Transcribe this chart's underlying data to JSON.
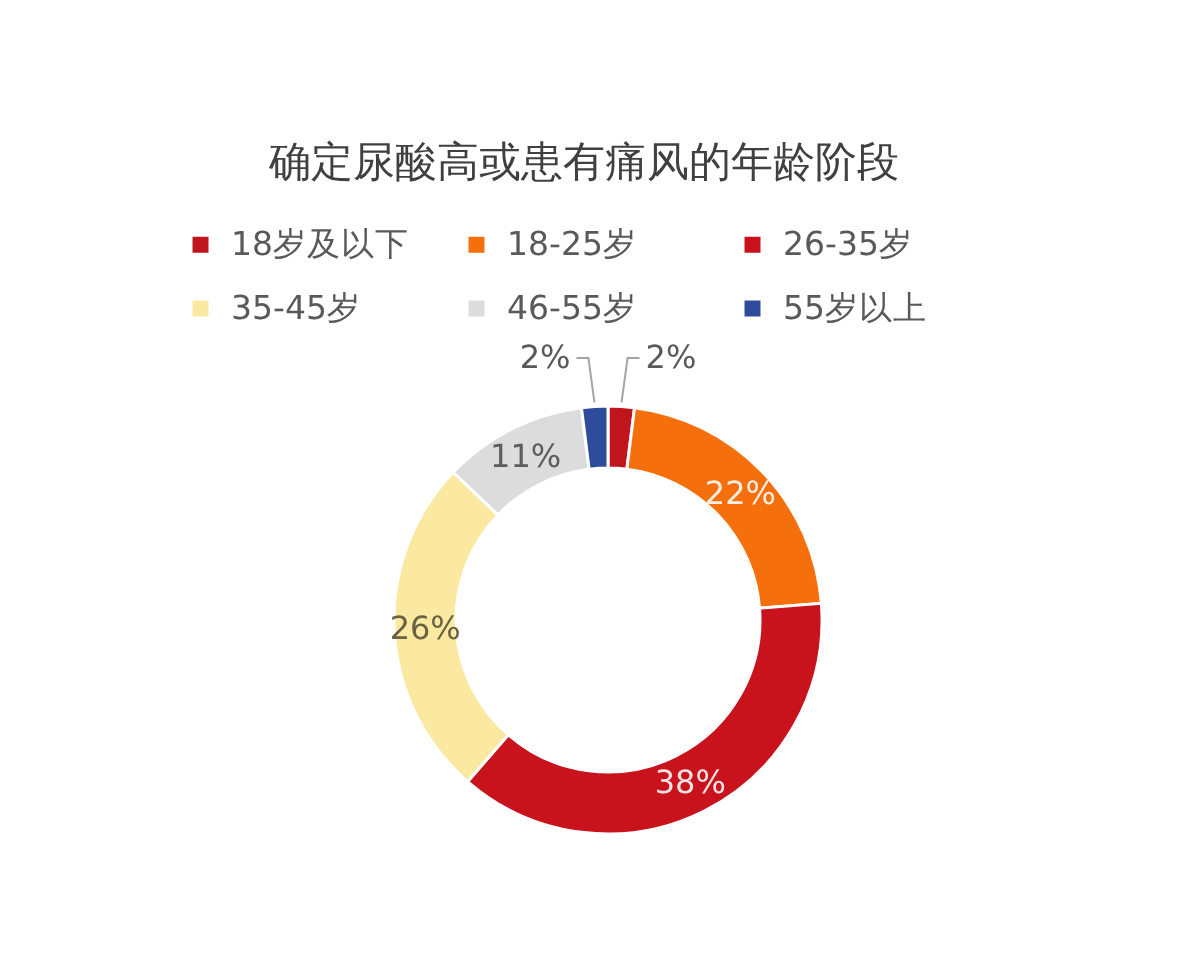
{
  "chart_data": {
    "type": "donut",
    "title": "确定尿酸高或患有痛风的年龄阶段",
    "categories": [
      "18岁及以下",
      "18-25岁",
      "26-35岁",
      "35-45岁",
      "46-55岁",
      "55岁以上"
    ],
    "values": [
      2,
      22,
      38,
      26,
      11,
      2
    ],
    "colors": [
      "#c0141e",
      "#f5700c",
      "#c8121c",
      "#fbe9a2",
      "#dcdcdc",
      "#2f4c9c"
    ],
    "value_labels": [
      "2%",
      "22%",
      "38%",
      "26%",
      "11%",
      "2%"
    ],
    "legend": "top"
  }
}
